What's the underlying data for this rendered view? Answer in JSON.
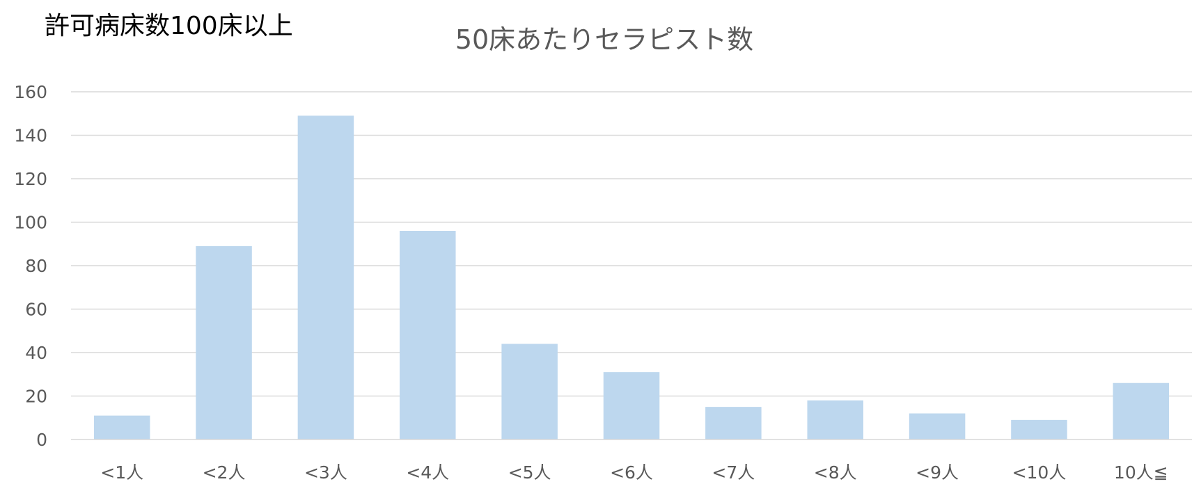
{
  "corner_label": "許可病床数100床以上",
  "chart_data": {
    "type": "bar",
    "title": "50床あたりセラピスト数",
    "xlabel": "",
    "ylabel": "",
    "categories": [
      "<1人",
      "<2人",
      "<3人",
      "<4人",
      "<5人",
      "<6人",
      "<7人",
      "<8人",
      "<9人",
      "<10人",
      "10人≦"
    ],
    "values": [
      11,
      89,
      149,
      96,
      44,
      31,
      15,
      18,
      12,
      9,
      26
    ],
    "ylim": [
      0,
      160
    ],
    "yticks": [
      0,
      20,
      40,
      60,
      80,
      100,
      120,
      140,
      160
    ],
    "grid": true,
    "legend": "none",
    "bar_color": "#bdd7ee"
  }
}
